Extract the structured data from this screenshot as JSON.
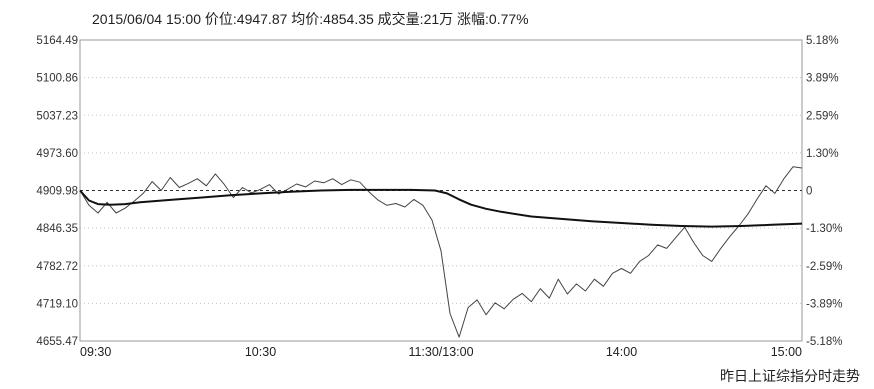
{
  "header": {
    "datetime": "2015/06/04 15:00",
    "price_label": "价位",
    "price": "4947.87",
    "avg_label": "均价",
    "avg": "4854.35",
    "volume_label": "成交量",
    "volume": "21万",
    "change_label": "涨幅",
    "change": "0.77%"
  },
  "caption": "昨日上证综指分时走势",
  "chart_data": {
    "type": "line",
    "title": "",
    "xlabel": "",
    "ylabel": "",
    "previous_close": 4909.98,
    "ylim": [
      4655.47,
      5164.49
    ],
    "y_ticks": [
      "5164.49",
      "5100.86",
      "5037.23",
      "4973.60",
      "4909.98",
      "4846.35",
      "4782.72",
      "4719.10",
      "4655.47"
    ],
    "y_tick_values": [
      5164.49,
      5100.86,
      5037.23,
      4973.6,
      4909.98,
      4846.35,
      4782.72,
      4719.1,
      4655.47
    ],
    "pct_ticks": [
      "5.18%",
      "3.89%",
      "2.59%",
      "1.30%",
      "0",
      "-1.30%",
      "-2.59%",
      "-3.89%",
      "-5.18%"
    ],
    "x_ticks": [
      "09:30",
      "10:30",
      "11:30/13:00",
      "14:00",
      "15:00"
    ],
    "x_tick_minutes": [
      0,
      60,
      120,
      180,
      240
    ],
    "x_range": [
      0,
      240
    ],
    "grid": "horizontal-dotted",
    "series": [
      {
        "kind": "price",
        "x": [
          0,
          3,
          6,
          9,
          12,
          15,
          18,
          21,
          24,
          27,
          30,
          33,
          36,
          39,
          42,
          45,
          48,
          51,
          54,
          57,
          60,
          63,
          66,
          69,
          72,
          75,
          78,
          81,
          84,
          87,
          90,
          93,
          96,
          99,
          102,
          105,
          108,
          111,
          114,
          117,
          120,
          123,
          126,
          129,
          132,
          135,
          138,
          141,
          144,
          147,
          150,
          153,
          156,
          159,
          162,
          165,
          168,
          171,
          174,
          177,
          180,
          183,
          186,
          189,
          192,
          195,
          198,
          201,
          204,
          207,
          210,
          213,
          216,
          219,
          222,
          225,
          228,
          231,
          234,
          237,
          240
        ],
        "values": [
          4910,
          4885,
          4872,
          4890,
          4872,
          4880,
          4892,
          4905,
          4925,
          4910,
          4932,
          4915,
          4922,
          4930,
          4918,
          4938,
          4920,
          4898,
          4915,
          4906,
          4912,
          4920,
          4904,
          4912,
          4921,
          4916,
          4926,
          4923,
          4930,
          4920,
          4928,
          4924,
          4908,
          4894,
          4885,
          4888,
          4882,
          4895,
          4885,
          4860,
          4808,
          4702,
          4662,
          4712,
          4725,
          4700,
          4720,
          4710,
          4726,
          4736,
          4722,
          4744,
          4728,
          4760,
          4735,
          4752,
          4740,
          4760,
          4748,
          4770,
          4778,
          4770,
          4790,
          4800,
          4818,
          4812,
          4830,
          4848,
          4822,
          4800,
          4790,
          4812,
          4832,
          4850,
          4870,
          4895,
          4918,
          4905,
          4930,
          4950,
          4948
        ]
      },
      {
        "kind": "average",
        "x": [
          0,
          3,
          6,
          10,
          15,
          20,
          30,
          40,
          50,
          60,
          70,
          80,
          90,
          100,
          110,
          118,
          122,
          126,
          130,
          135,
          140,
          150,
          160,
          170,
          180,
          190,
          200,
          210,
          220,
          230,
          240
        ],
        "values": [
          4910,
          4893,
          4887,
          4886,
          4887,
          4890,
          4894,
          4898,
          4902,
          4905,
          4908,
          4910,
          4911,
          4911,
          4911,
          4910,
          4905,
          4895,
          4886,
          4879,
          4874,
          4866,
          4862,
          4858,
          4855,
          4852,
          4850,
          4849,
          4850,
          4852,
          4854
        ]
      }
    ]
  }
}
